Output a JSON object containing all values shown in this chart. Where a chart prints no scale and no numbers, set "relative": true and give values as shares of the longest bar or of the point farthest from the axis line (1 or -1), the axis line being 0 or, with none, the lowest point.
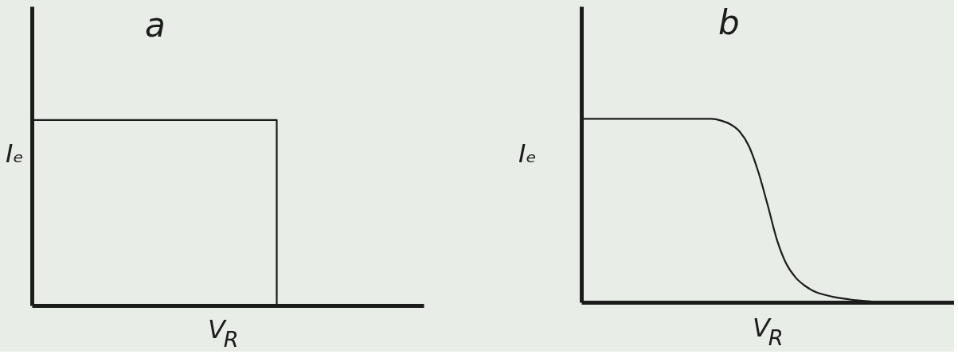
{
  "chart_data": [
    {
      "type": "step",
      "title": "a",
      "xlabel": "V$_{R}$",
      "ylabel": "Iₑ",
      "relative": true,
      "color": "#1c1c1c",
      "categories": [
        null,
        null,
        null,
        null,
        null,
        null,
        null,
        null,
        null,
        null,
        null,
        null,
        null,
        null,
        null,
        null,
        null,
        null,
        null,
        null,
        null,
        null,
        null,
        null,
        null,
        null,
        null,
        null,
        null,
        null,
        null,
        null,
        null,
        null,
        null,
        null,
        null,
        null,
        null,
        null,
        null
      ],
      "values": [
        1,
        1,
        1,
        1,
        1,
        1,
        1,
        1,
        1,
        1,
        1,
        1,
        1,
        1,
        1,
        1,
        1,
        1,
        1,
        1,
        1,
        1,
        1,
        1,
        1,
        0,
        null,
        null,
        null,
        null,
        null,
        null,
        null,
        null,
        null,
        null,
        null,
        null,
        null,
        null,
        null
      ]
    },
    {
      "type": "line",
      "title": "b",
      "xlabel": "V$_{R}$",
      "ylabel": "Iₑ",
      "relative": true,
      "color": "#1c1c1c",
      "categories": [
        null,
        null,
        null,
        null,
        null,
        null,
        null,
        null,
        null,
        null,
        null,
        null,
        null,
        null,
        null,
        null,
        null,
        null,
        null,
        null,
        null,
        null,
        null,
        null,
        null,
        null,
        null,
        null,
        null,
        null,
        null,
        null,
        null,
        null,
        null,
        null,
        null,
        null,
        null,
        null,
        null
      ],
      "values": [
        1,
        1,
        1,
        1,
        1,
        1,
        1,
        1,
        1,
        1,
        1,
        1,
        1,
        1,
        1,
        0.99,
        0.97,
        0.93,
        0.85,
        0.71,
        0.53,
        0.34,
        0.21,
        0.135,
        0.09,
        0.06,
        0.042,
        0.03,
        0.021,
        0.014,
        0.009,
        0.005,
        0,
        null,
        null,
        null,
        null,
        null,
        null,
        null,
        null
      ]
    }
  ]
}
